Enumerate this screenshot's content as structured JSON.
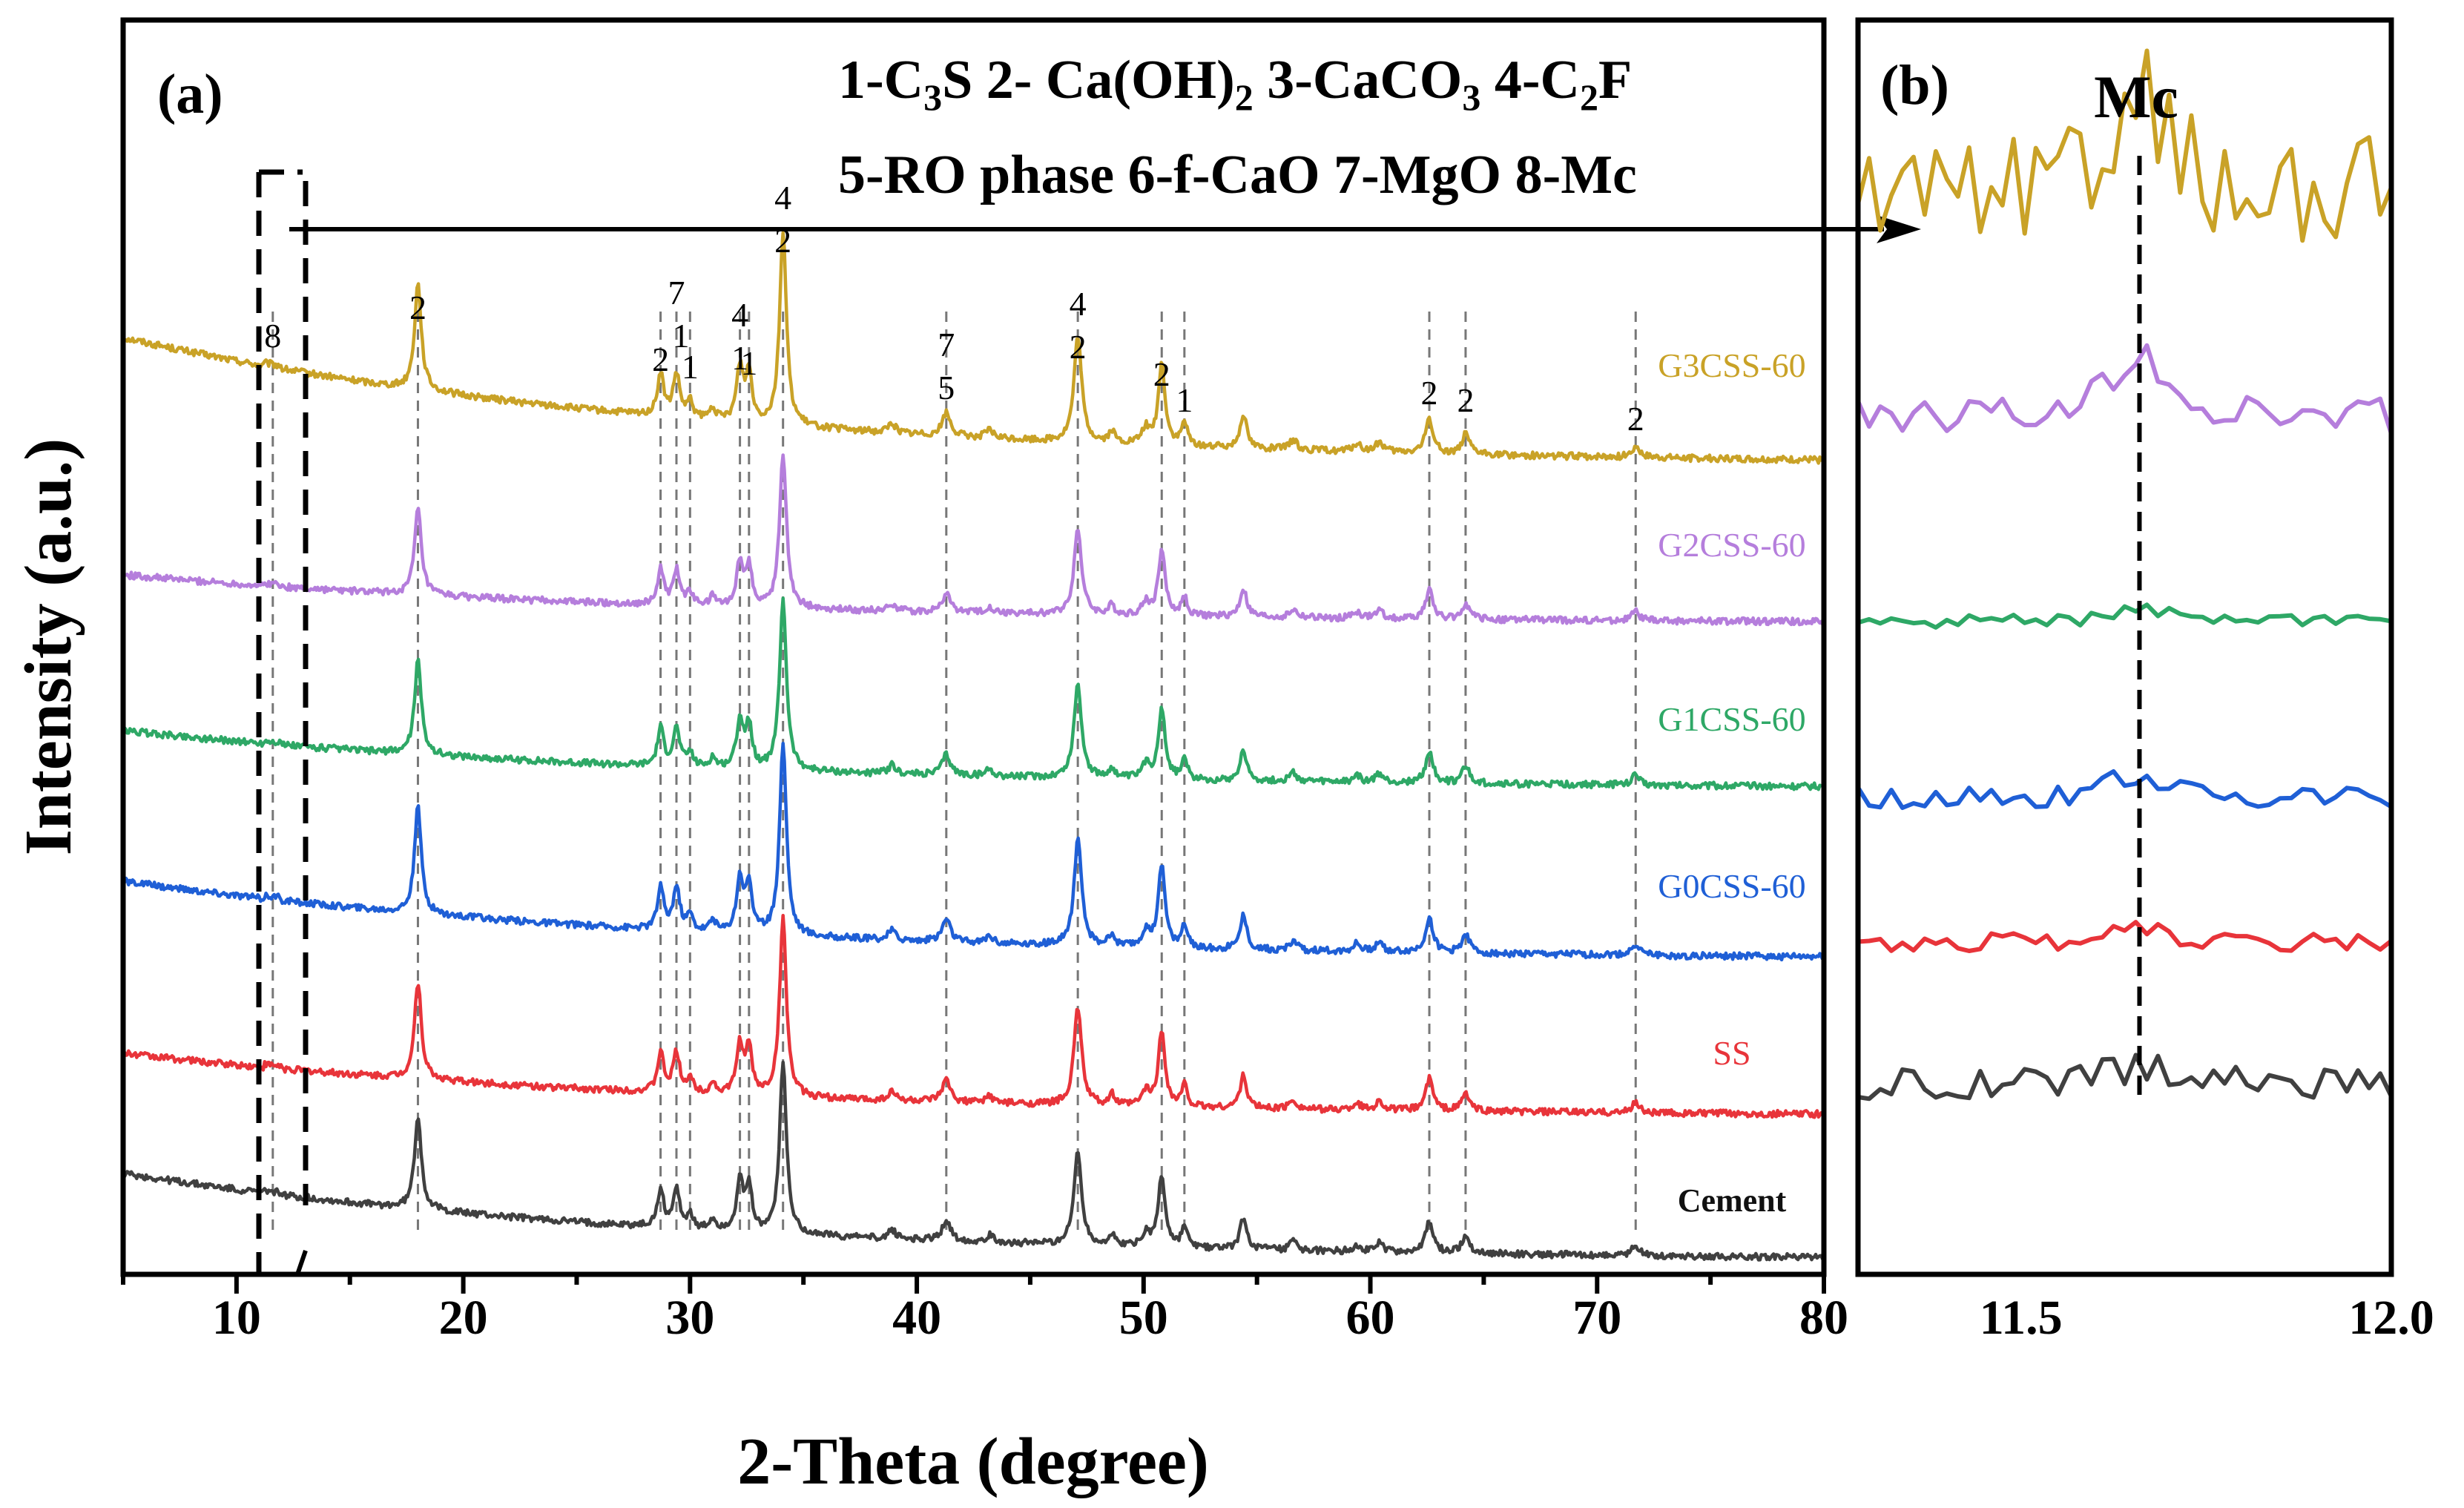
{
  "chart_data": [
    {
      "type": "line",
      "panel_label": "(a)",
      "xlabel": "2-Theta (degree)",
      "ylabel": "Intensity (a.u.)",
      "xlim": [
        5,
        80
      ],
      "xticks": [
        10,
        20,
        30,
        40,
        50,
        60,
        70,
        80
      ],
      "legend_lines": [
        "1-C3S 2- Ca(OH)2 3-CaCO3 4-C2F",
        "5-RO phase 6-f-CaO 7-MgO 8-Mc"
      ],
      "series": [
        {
          "name": "G3CSS-60",
          "color": "#C9A227"
        },
        {
          "name": "G2CSS-60",
          "color": "#B57EDC"
        },
        {
          "name": "G1CSS-60",
          "color": "#2EA866"
        },
        {
          "name": "G0CSS-60",
          "color": "#1F5FD6"
        },
        {
          "name": "SS",
          "color": "#E8343A"
        },
        {
          "name": "Cement",
          "color": "#404040"
        }
      ],
      "peak_positions": [
        11.6,
        18.0,
        28.7,
        29.4,
        30.0,
        32.2,
        32.6,
        34.1,
        41.3,
        47.1,
        50.8,
        51.8,
        62.6,
        64.2,
        71.7
      ],
      "peak_labels": [
        {
          "x": 11.6,
          "labels": [
            "8"
          ]
        },
        {
          "x": 18.0,
          "labels": [
            "2"
          ]
        },
        {
          "x": 28.7,
          "labels": [
            "2"
          ]
        },
        {
          "x": 29.4,
          "labels": [
            "7",
            "1"
          ]
        },
        {
          "x": 30.0,
          "labels": [
            "1"
          ]
        },
        {
          "x": 32.2,
          "labels": [
            "4",
            "1"
          ]
        },
        {
          "x": 32.6,
          "labels": [
            "1"
          ]
        },
        {
          "x": 34.1,
          "labels": [
            "4",
            "2"
          ]
        },
        {
          "x": 41.3,
          "labels": [
            "7",
            "5"
          ]
        },
        {
          "x": 47.1,
          "labels": [
            "4",
            "2"
          ]
        },
        {
          "x": 50.8,
          "labels": [
            "2"
          ]
        },
        {
          "x": 51.8,
          "labels": [
            "1"
          ]
        },
        {
          "x": 62.6,
          "labels": [
            "2"
          ]
        },
        {
          "x": 64.2,
          "labels": [
            "2"
          ]
        },
        {
          "x": 71.7,
          "labels": [
            "2"
          ]
        }
      ]
    },
    {
      "type": "line",
      "panel_label": "(b)",
      "annotation": "Mc",
      "xlim": [
        11.28,
        12.0
      ],
      "xticks": [
        11.5,
        12.0
      ],
      "xtick_labels": [
        "11.5",
        "12.0"
      ],
      "mc_position": 11.66
    }
  ],
  "text": {
    "panel_a": "(a)",
    "panel_b": "(b)",
    "legend_line1_plain": "1-C",
    "legend_line1_sub1": "3",
    "legend_line1_mid1": "S 2- Ca(OH)",
    "legend_line1_sub2": "2",
    "legend_line1_mid2": " 3-CaCO",
    "legend_line1_sub3": "3",
    "legend_line1_mid3": " 4-C",
    "legend_line1_sub4": "2",
    "legend_line1_end": "F",
    "legend_line2": "5-RO phase 6-f-CaO 7-MgO 8-Mc",
    "xlabel": "2-Theta (degree)",
    "ylabel": "Intensity (a.u.)",
    "mc_label": "Mc"
  }
}
